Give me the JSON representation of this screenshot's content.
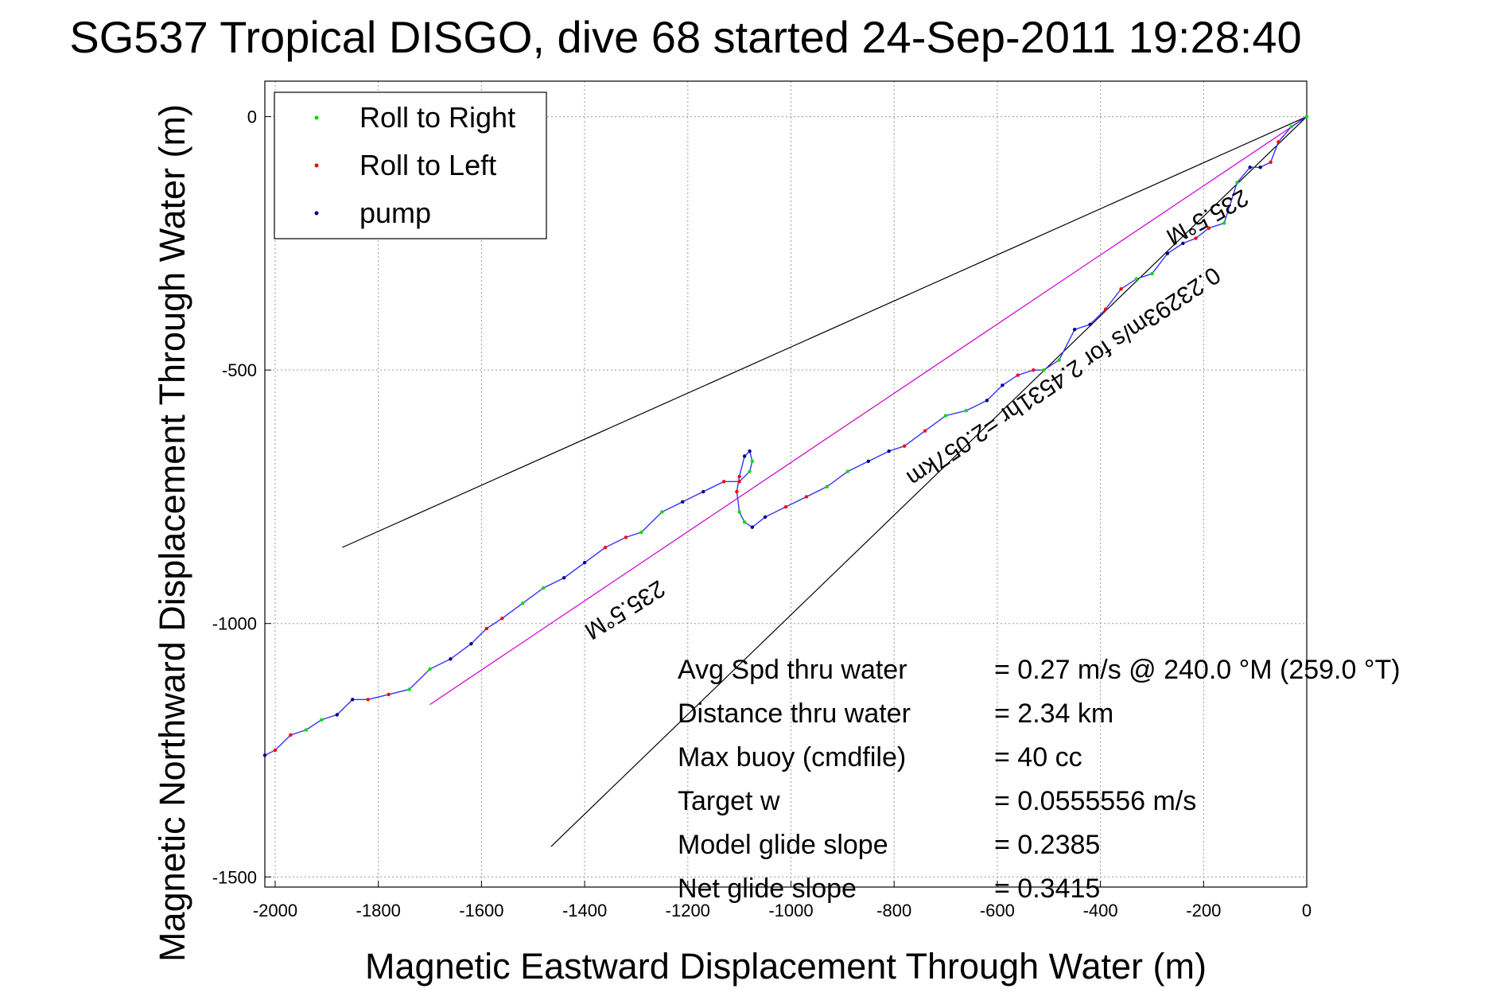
{
  "chart_data": {
    "type": "line",
    "title": "SG537 Tropical DISGO, dive 68 started 24-Sep-2011 19:28:40",
    "xlabel": "Magnetic Eastward Displacement Through Water (m)",
    "ylabel": "Magnetic Northward Displacement Through Water (m)",
    "xlim": [
      -2020,
      0
    ],
    "ylim": [
      -1520,
      70
    ],
    "xticks": [
      -2000,
      -1800,
      -1600,
      -1400,
      -1200,
      -1000,
      -800,
      -600,
      -400,
      -200,
      0
    ],
    "yticks": [
      -1500,
      -1000,
      -500,
      0
    ],
    "grid": true,
    "legend_position": "top-left",
    "legend": [
      {
        "label": "Roll to Right",
        "color": "#00dd00"
      },
      {
        "label": "Roll to Left",
        "color": "#ff0000"
      },
      {
        "label": "pump",
        "color": "#000080"
      }
    ],
    "track_color": "#3333ff",
    "series": [
      {
        "role": "track",
        "x": [
          0,
          -30,
          -55,
          -70,
          -90,
          -110,
          -135,
          -160,
          -190,
          -215,
          -240,
          -270,
          -300,
          -330,
          -360,
          -390,
          -420,
          -450,
          -480,
          -510,
          -530,
          -560,
          -590,
          -620,
          -660,
          -700,
          -740,
          -780,
          -810,
          -850,
          -890,
          -930,
          -970,
          -1010,
          -1050,
          -1075,
          -1090,
          -1100,
          -1105,
          -1100,
          -1090,
          -1080,
          -1075,
          -1080,
          -1100,
          -1130,
          -1170,
          -1210,
          -1250,
          -1290,
          -1320,
          -1360,
          -1400,
          -1440,
          -1480,
          -1520,
          -1560,
          -1590,
          -1620,
          -1660,
          -1700,
          -1740,
          -1780,
          -1820,
          -1850,
          -1880,
          -1910,
          -1940,
          -1970,
          -2000,
          -2020
        ],
        "y": [
          0,
          -20,
          -50,
          -90,
          -100,
          -100,
          -130,
          -210,
          -220,
          -240,
          -250,
          -270,
          -310,
          -320,
          -340,
          -380,
          -410,
          -420,
          -480,
          -500,
          -500,
          -510,
          -530,
          -560,
          -580,
          -590,
          -620,
          -650,
          -660,
          -680,
          -700,
          -730,
          -750,
          -770,
          -790,
          -810,
          -800,
          -780,
          -740,
          -710,
          -670,
          -660,
          -680,
          -700,
          -720,
          -720,
          -740,
          -760,
          -780,
          -820,
          -830,
          -850,
          -880,
          -910,
          -930,
          -960,
          -990,
          -1010,
          -1040,
          -1070,
          -1090,
          -1130,
          -1140,
          -1150,
          -1150,
          -1180,
          -1190,
          -1210,
          -1220,
          -1250,
          -1260
        ]
      }
    ],
    "guide_lines": [
      {
        "x": [
          0,
          -1870
        ],
        "y": [
          0,
          -850
        ],
        "color": "#000000"
      },
      {
        "x": [
          0,
          -1700
        ],
        "y": [
          0,
          -1160
        ],
        "color": "#cc00cc"
      },
      {
        "x": [
          0,
          -1465
        ],
        "y": [
          0,
          -1440
        ],
        "color": "#000000"
      }
    ],
    "annotations": [
      {
        "text": "235.5°M",
        "x": -1330,
        "y": -960,
        "rotate": 148
      },
      {
        "text": "235.5°M",
        "x": -200,
        "y": -185,
        "rotate": 151
      },
      {
        "text": "0.23293m/s for 2.4531hr =2.057km",
        "x": -480,
        "y": -500,
        "rotate": 146
      }
    ],
    "stats": [
      {
        "label": "Avg Spd thru water",
        "value": "=  0.27 m/s @ 240.0 °M (259.0 °T)"
      },
      {
        "label": "Distance thru water",
        "value": "=  2.34 km"
      },
      {
        "label": "Max buoy (cmdfile)",
        "value": "= 40 cc"
      },
      {
        "label": "Target w",
        "value": "= 0.0555556 m/s"
      },
      {
        "label": "Model glide slope",
        "value": "= 0.2385"
      },
      {
        "label": "Net glide slope",
        "value": "= 0.3415"
      }
    ]
  }
}
